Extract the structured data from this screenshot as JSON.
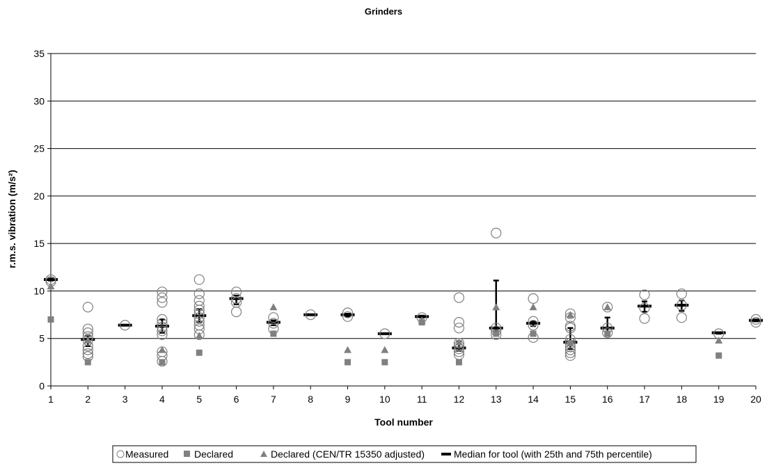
{
  "chart_data": {
    "type": "scatter",
    "title": "Grinders",
    "xlabel": "Tool number",
    "ylabel": "r.m.s. vibration (m/s²)",
    "xlim": [
      1,
      20
    ],
    "ylim": [
      0,
      35
    ],
    "x_ticks": [
      1,
      2,
      3,
      4,
      5,
      6,
      7,
      8,
      9,
      10,
      11,
      12,
      13,
      14,
      15,
      16,
      17,
      18,
      19,
      20
    ],
    "y_ticks": [
      0,
      5,
      10,
      15,
      20,
      25,
      30,
      35
    ],
    "grid": "horizontal",
    "legend_position": "bottom",
    "colors": {
      "measured": "#808080",
      "declared": "#808080",
      "declared_adjusted": "#808080",
      "median": "#000000"
    },
    "legend": [
      {
        "key": "measured",
        "label": "Measured"
      },
      {
        "key": "declared",
        "label": "Declared"
      },
      {
        "key": "declared_adjusted",
        "label": "Declared (CEN/TR 15350 adjusted)"
      },
      {
        "key": "median",
        "label": "Median for tool (with 25th and 75th percentile)"
      }
    ],
    "measured": [
      [
        1,
        11.2
      ],
      [
        1,
        11.0
      ],
      [
        2,
        8.3
      ],
      [
        2,
        6.0
      ],
      [
        2,
        5.6
      ],
      [
        2,
        5.2
      ],
      [
        2,
        4.8
      ],
      [
        2,
        4.2
      ],
      [
        2,
        3.8
      ],
      [
        2,
        3.4
      ],
      [
        2,
        3.1
      ],
      [
        3,
        6.4
      ],
      [
        4,
        9.9
      ],
      [
        4,
        9.3
      ],
      [
        4,
        8.8
      ],
      [
        4,
        7.0
      ],
      [
        4,
        6.6
      ],
      [
        4,
        6.2
      ],
      [
        4,
        5.8
      ],
      [
        4,
        5.4
      ],
      [
        4,
        3.6
      ],
      [
        4,
        3.2
      ],
      [
        4,
        2.6
      ],
      [
        5,
        11.2
      ],
      [
        5,
        9.7
      ],
      [
        5,
        9.0
      ],
      [
        5,
        8.4
      ],
      [
        5,
        8.0
      ],
      [
        5,
        7.6
      ],
      [
        5,
        7.2
      ],
      [
        5,
        6.8
      ],
      [
        5,
        6.4
      ],
      [
        5,
        6.0
      ],
      [
        5,
        5.4
      ],
      [
        6,
        9.9
      ],
      [
        6,
        9.2
      ],
      [
        6,
        8.8
      ],
      [
        6,
        7.8
      ],
      [
        7,
        7.2
      ],
      [
        7,
        6.6
      ],
      [
        7,
        6.0
      ],
      [
        8,
        7.5
      ],
      [
        9,
        7.7
      ],
      [
        9,
        7.3
      ],
      [
        10,
        5.5
      ],
      [
        11,
        7.2
      ],
      [
        12,
        9.3
      ],
      [
        12,
        6.7
      ],
      [
        12,
        6.1
      ],
      [
        12,
        4.5
      ],
      [
        12,
        4.2
      ],
      [
        12,
        3.9
      ],
      [
        12,
        3.6
      ],
      [
        12,
        3.3
      ],
      [
        13,
        16.1
      ],
      [
        13,
        6.1
      ],
      [
        13,
        5.8
      ],
      [
        13,
        5.4
      ],
      [
        14,
        9.2
      ],
      [
        14,
        6.8
      ],
      [
        14,
        6.4
      ],
      [
        14,
        5.1
      ],
      [
        15,
        7.6
      ],
      [
        15,
        7.2
      ],
      [
        15,
        6.3
      ],
      [
        15,
        6.1
      ],
      [
        15,
        4.9
      ],
      [
        15,
        4.5
      ],
      [
        15,
        4.1
      ],
      [
        15,
        3.8
      ],
      [
        15,
        3.5
      ],
      [
        15,
        3.2
      ],
      [
        16,
        8.3
      ],
      [
        16,
        6.1
      ],
      [
        16,
        5.6
      ],
      [
        17,
        9.6
      ],
      [
        17,
        8.2
      ],
      [
        17,
        7.1
      ],
      [
        18,
        9.7
      ],
      [
        18,
        8.5
      ],
      [
        18,
        7.2
      ],
      [
        19,
        5.5
      ],
      [
        20,
        7.0
      ],
      [
        20,
        6.7
      ]
    ],
    "declared": [
      [
        1,
        7.0
      ],
      [
        2,
        2.5
      ],
      [
        4,
        2.5
      ],
      [
        5,
        3.5
      ],
      [
        7,
        5.5
      ],
      [
        9,
        2.5
      ],
      [
        10,
        2.5
      ],
      [
        11,
        6.7
      ],
      [
        12,
        2.5
      ],
      [
        13,
        5.5
      ],
      [
        14,
        5.5
      ],
      [
        15,
        4.5
      ],
      [
        16,
        5.5
      ],
      [
        19,
        3.2
      ]
    ],
    "declared_adjusted": [
      [
        1,
        10.5
      ],
      [
        2,
        4.8
      ],
      [
        4,
        3.8
      ],
      [
        5,
        5.3
      ],
      [
        7,
        8.3
      ],
      [
        9,
        3.8
      ],
      [
        10,
        3.8
      ],
      [
        11,
        6.9
      ],
      [
        12,
        4.6
      ],
      [
        13,
        8.3
      ],
      [
        14,
        8.3
      ],
      [
        15,
        7.5
      ],
      [
        16,
        8.3
      ],
      [
        19,
        4.8
      ]
    ],
    "median": [
      {
        "x": 1,
        "median": 11.2,
        "p25": 11.1,
        "p75": 11.3
      },
      {
        "x": 2,
        "median": 4.9,
        "p25": 4.2,
        "p75": 5.3
      },
      {
        "x": 3,
        "median": 6.4,
        "p25": 6.4,
        "p75": 6.4
      },
      {
        "x": 4,
        "median": 6.3,
        "p25": 5.6,
        "p75": 7.0
      },
      {
        "x": 5,
        "median": 7.4,
        "p25": 6.7,
        "p75": 8.1
      },
      {
        "x": 6,
        "median": 9.2,
        "p25": 8.6,
        "p75": 9.5
      },
      {
        "x": 7,
        "median": 6.7,
        "p25": 6.4,
        "p75": 6.9
      },
      {
        "x": 8,
        "median": 7.5,
        "p25": 7.5,
        "p75": 7.5
      },
      {
        "x": 9,
        "median": 7.5,
        "p25": 7.3,
        "p75": 7.6
      },
      {
        "x": 10,
        "median": 5.5,
        "p25": 5.5,
        "p75": 5.5
      },
      {
        "x": 11,
        "median": 7.3,
        "p25": 7.2,
        "p75": 7.4
      },
      {
        "x": 12,
        "median": 4.0,
        "p25": 3.7,
        "p75": 4.7
      },
      {
        "x": 13,
        "median": 6.1,
        "p25": 5.8,
        "p75": 11.1
      },
      {
        "x": 14,
        "median": 6.6,
        "p25": 6.3,
        "p75": 6.8
      },
      {
        "x": 15,
        "median": 4.6,
        "p25": 3.9,
        "p75": 6.1
      },
      {
        "x": 16,
        "median": 6.1,
        "p25": 5.7,
        "p75": 7.2
      },
      {
        "x": 17,
        "median": 8.4,
        "p25": 7.8,
        "p75": 8.9
      },
      {
        "x": 18,
        "median": 8.5,
        "p25": 7.9,
        "p75": 9.0
      },
      {
        "x": 19,
        "median": 5.6,
        "p25": 5.5,
        "p75": 5.6
      },
      {
        "x": 20,
        "median": 6.9,
        "p25": 6.8,
        "p75": 7.0
      }
    ]
  }
}
